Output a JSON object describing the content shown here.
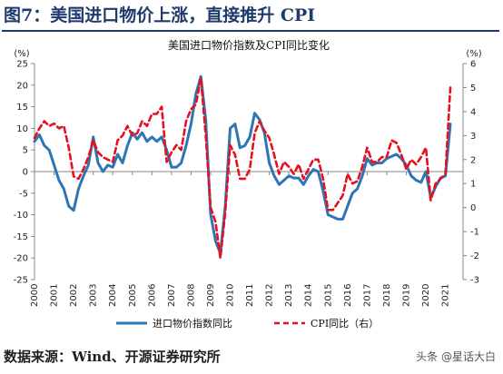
{
  "figure": {
    "title": "图7：美国进口物价上涨，直接推升 CPI",
    "source_text": "数据来源：Wind、开源证券研究所",
    "watermark": "头条 @星话大白"
  },
  "chart_data": {
    "type": "line",
    "title": "美国进口物价指数及CPI同比变化",
    "left_unit": "(%)",
    "right_unit": "(%)",
    "y_left": {
      "lim": [
        -25,
        25
      ],
      "ticks": [
        -25,
        -20,
        -15,
        -10,
        -5,
        0,
        5,
        10,
        15,
        20,
        25
      ]
    },
    "y_right": {
      "lim": [
        -3,
        6
      ],
      "ticks": [
        -3,
        -2,
        -1,
        0,
        1,
        2,
        3,
        4,
        5,
        6
      ]
    },
    "x_ticks": [
      "2000",
      "2001",
      "2002",
      "2003",
      "2004",
      "2005",
      "2006",
      "2007",
      "2008",
      "2009",
      "2010",
      "2011",
      "2012",
      "2013",
      "2014",
      "2015",
      "2016",
      "2017",
      "2018",
      "2019",
      "2020",
      "2021"
    ],
    "series": [
      {
        "name": "进口物价指数同比",
        "axis": "left",
        "color": "#2e75b6",
        "style": "solid",
        "x": [
          2000.0,
          2000.25,
          2000.5,
          2000.75,
          2001.0,
          2001.25,
          2001.5,
          2001.75,
          2002.0,
          2002.25,
          2002.5,
          2002.75,
          2003.0,
          2003.25,
          2003.5,
          2003.75,
          2004.0,
          2004.25,
          2004.5,
          2004.75,
          2005.0,
          2005.25,
          2005.5,
          2005.75,
          2006.0,
          2006.25,
          2006.5,
          2006.75,
          2007.0,
          2007.25,
          2007.5,
          2007.75,
          2008.0,
          2008.25,
          2008.5,
          2008.75,
          2009.0,
          2009.25,
          2009.5,
          2009.75,
          2010.0,
          2010.25,
          2010.5,
          2010.75,
          2011.0,
          2011.25,
          2011.5,
          2011.75,
          2012.0,
          2012.25,
          2012.5,
          2012.75,
          2013.0,
          2013.25,
          2013.5,
          2013.75,
          2014.0,
          2014.25,
          2014.5,
          2014.75,
          2015.0,
          2015.25,
          2015.5,
          2015.75,
          2016.0,
          2016.25,
          2016.5,
          2016.75,
          2017.0,
          2017.25,
          2017.5,
          2017.75,
          2018.0,
          2018.25,
          2018.5,
          2018.75,
          2019.0,
          2019.25,
          2019.5,
          2019.75,
          2020.0,
          2020.25,
          2020.5,
          2020.75,
          2021.0,
          2021.25
        ],
        "y": [
          7,
          8.5,
          6,
          5,
          1.5,
          -2,
          -4,
          -8,
          -9,
          -4,
          -1,
          1.5,
          8,
          2,
          0,
          1.5,
          1,
          4,
          2,
          6,
          9,
          7.5,
          9,
          7,
          8,
          7,
          8,
          5,
          1,
          1,
          2,
          6,
          11,
          18,
          22,
          12,
          -10,
          -16,
          -19,
          -8,
          10,
          11,
          5.5,
          6,
          8,
          13.5,
          12,
          9,
          2,
          -1,
          -3,
          -2,
          -1,
          -1.5,
          -1.5,
          -3,
          -1,
          0.5,
          0,
          -4.5,
          -10,
          -10.5,
          -11,
          -11,
          -8,
          -5,
          -4,
          -1,
          3,
          1.5,
          2,
          2,
          3,
          3.5,
          4,
          3,
          1.5,
          -1,
          -2,
          -2.5,
          0,
          -6,
          -3.5,
          -1.5,
          -1,
          11
        ]
      },
      {
        "name": "CPI同比（右）",
        "axis": "right",
        "color": "#e8101e",
        "style": "dashed",
        "x": [
          2000.0,
          2000.25,
          2000.5,
          2000.75,
          2001.0,
          2001.25,
          2001.5,
          2001.75,
          2002.0,
          2002.25,
          2002.5,
          2002.75,
          2003.0,
          2003.25,
          2003.5,
          2003.75,
          2004.0,
          2004.25,
          2004.5,
          2004.75,
          2005.0,
          2005.25,
          2005.5,
          2005.75,
          2006.0,
          2006.25,
          2006.5,
          2006.75,
          2007.0,
          2007.25,
          2007.5,
          2007.75,
          2008.0,
          2008.25,
          2008.5,
          2008.75,
          2009.0,
          2009.25,
          2009.5,
          2009.75,
          2010.0,
          2010.25,
          2010.5,
          2010.75,
          2011.0,
          2011.25,
          2011.5,
          2011.75,
          2012.0,
          2012.25,
          2012.5,
          2012.75,
          2013.0,
          2013.25,
          2013.5,
          2013.75,
          2014.0,
          2014.25,
          2014.5,
          2014.75,
          2015.0,
          2015.25,
          2015.5,
          2015.75,
          2016.0,
          2016.25,
          2016.5,
          2016.75,
          2017.0,
          2017.25,
          2017.5,
          2017.75,
          2018.0,
          2018.25,
          2018.5,
          2018.75,
          2019.0,
          2019.25,
          2019.5,
          2019.75,
          2020.0,
          2020.25,
          2020.5,
          2020.75,
          2021.0,
          2021.25
        ],
        "y": [
          2.9,
          3.3,
          3.6,
          3.4,
          3.5,
          3.3,
          3.4,
          2.5,
          1.3,
          1.2,
          1.6,
          2.1,
          2.8,
          2.3,
          2.1,
          2.0,
          1.9,
          2.8,
          3.0,
          3.4,
          3.0,
          3.1,
          3.6,
          3.4,
          3.9,
          3.9,
          4.2,
          1.9,
          2.3,
          2.6,
          2.4,
          3.6,
          4.1,
          4.3,
          5.4,
          3.0,
          0.0,
          -0.6,
          -2.1,
          -0.2,
          2.6,
          2.2,
          1.2,
          1.2,
          1.6,
          3.1,
          3.6,
          3.2,
          2.9,
          2.2,
          1.4,
          1.9,
          1.7,
          1.4,
          1.8,
          1.2,
          1.6,
          2.0,
          2.0,
          1.2,
          -0.1,
          -0.1,
          0.2,
          0.5,
          1.4,
          1.0,
          1.1,
          1.7,
          2.5,
          1.9,
          1.9,
          2.1,
          2.1,
          2.8,
          2.7,
          2.2,
          1.6,
          2.0,
          1.8,
          2.1,
          2.5,
          0.3,
          1.0,
          1.2,
          1.4,
          5.0
        ]
      }
    ],
    "legend_position": "bottom",
    "grid": false
  }
}
